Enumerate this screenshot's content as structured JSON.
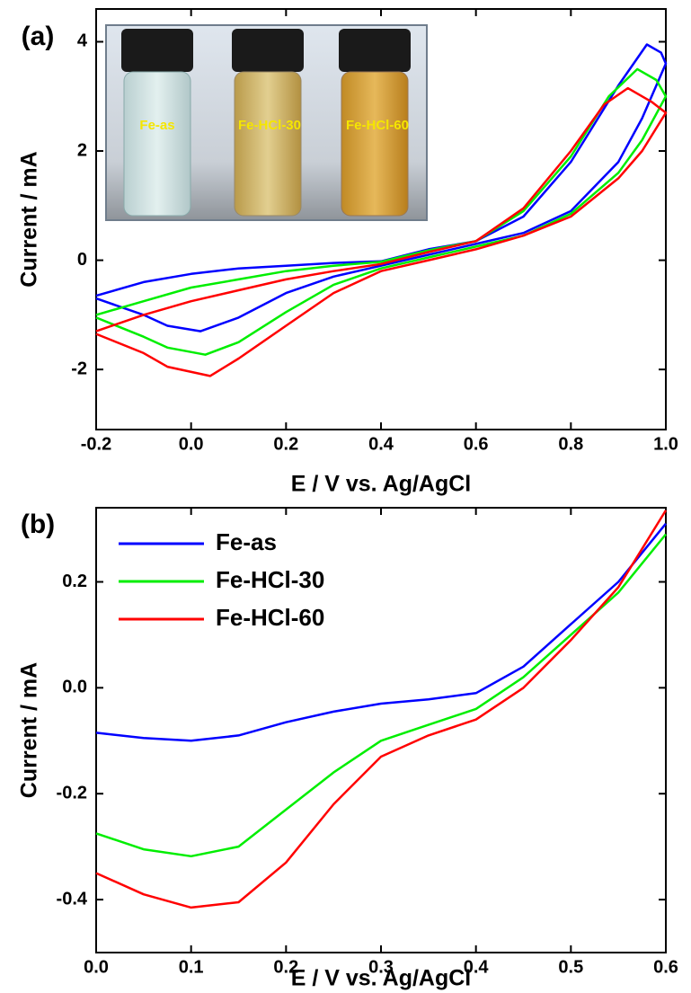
{
  "chart_data": [
    {
      "type": "line",
      "panel_label": "(a)",
      "xlabel": "E / V vs. Ag/AgCl",
      "ylabel": "Current / mA",
      "xlim": [
        -0.2,
        1.0
      ],
      "ylim": [
        -3.1,
        4.6
      ],
      "xticks": [
        -0.2,
        {
          "value": 0,
          "label": "0.0"
        },
        0.2,
        0.4,
        0.6,
        0.8,
        {
          "value": 1.0,
          "label": "1.0"
        }
      ],
      "yticks": [
        -2,
        0,
        2,
        4
      ],
      "annotations": [
        "Fe-as",
        "Fe-HCl-30",
        "Fe-HCl-60"
      ],
      "series": [
        {
          "color": "#0000ff",
          "x": [
            -0.2,
            -0.1,
            0,
            0.1,
            0.2,
            0.3,
            0.4,
            0.5,
            0.6,
            0.7,
            0.8,
            0.9,
            0.96,
            0.99,
            1.0,
            0.95,
            0.9,
            0.8,
            0.7,
            0.6,
            0.5,
            0.4,
            0.3,
            0.2,
            0.1,
            0.02,
            -0.05,
            -0.1,
            -0.2
          ],
          "values": [
            -0.65,
            -0.4,
            -0.25,
            -0.15,
            -0.1,
            -0.05,
            -0.02,
            0.2,
            0.35,
            0.8,
            1.8,
            3.2,
            3.95,
            3.8,
            3.6,
            2.6,
            1.8,
            0.9,
            0.5,
            0.3,
            0.1,
            -0.1,
            -0.3,
            -0.6,
            -1.05,
            -1.3,
            -1.2,
            -1.0,
            -0.7
          ]
        },
        {
          "color": "#00ee00",
          "x": [
            -0.2,
            -0.1,
            0,
            0.1,
            0.2,
            0.3,
            0.4,
            0.5,
            0.6,
            0.7,
            0.8,
            0.88,
            0.94,
            0.98,
            1.0,
            0.95,
            0.9,
            0.8,
            0.7,
            0.6,
            0.5,
            0.4,
            0.3,
            0.2,
            0.1,
            0.03,
            -0.05,
            -0.1,
            -0.2
          ],
          "values": [
            -1.0,
            -0.75,
            -0.5,
            -0.35,
            -0.2,
            -0.1,
            -0.03,
            0.18,
            0.35,
            0.9,
            1.9,
            3.0,
            3.5,
            3.3,
            3.0,
            2.2,
            1.6,
            0.85,
            0.45,
            0.25,
            0.05,
            -0.15,
            -0.45,
            -0.95,
            -1.5,
            -1.73,
            -1.6,
            -1.4,
            -1.05
          ]
        },
        {
          "color": "#ff0000",
          "x": [
            -0.2,
            -0.1,
            0,
            0.1,
            0.2,
            0.3,
            0.4,
            0.5,
            0.6,
            0.7,
            0.8,
            0.87,
            0.92,
            0.97,
            1.0,
            0.95,
            0.9,
            0.8,
            0.7,
            0.6,
            0.5,
            0.4,
            0.3,
            0.2,
            0.1,
            0.04,
            -0.05,
            -0.1,
            -0.2
          ],
          "values": [
            -1.3,
            -1.0,
            -0.75,
            -0.55,
            -0.35,
            -0.2,
            -0.07,
            0.15,
            0.35,
            0.95,
            2.0,
            2.85,
            3.15,
            2.9,
            2.7,
            2.0,
            1.5,
            0.8,
            0.45,
            0.2,
            0.0,
            -0.2,
            -0.6,
            -1.2,
            -1.8,
            -2.12,
            -1.95,
            -1.7,
            -1.35
          ]
        }
      ]
    },
    {
      "type": "line",
      "panel_label": "(b)",
      "xlabel": "E / V vs. Ag/AgCl",
      "ylabel": "Current / mA",
      "xlim": [
        0,
        0.6
      ],
      "ylim": [
        -0.5,
        0.34
      ],
      "xticks": [
        {
          "value": 0,
          "label": "0.0"
        },
        0.1,
        0.2,
        0.3,
        0.4,
        0.5,
        0.6
      ],
      "yticks": [
        -0.4,
        -0.2,
        {
          "value": 0,
          "label": "0.0"
        },
        0.2
      ],
      "legend": "upper left",
      "series": [
        {
          "name": "Fe-as",
          "color": "#0000ff",
          "x": [
            0,
            0.05,
            0.1,
            0.15,
            0.2,
            0.25,
            0.3,
            0.35,
            0.4,
            0.45,
            0.5,
            0.55,
            0.6
          ],
          "values": [
            -0.085,
            -0.095,
            -0.1,
            -0.09,
            -0.065,
            -0.045,
            -0.03,
            -0.022,
            -0.01,
            0.04,
            0.12,
            0.2,
            0.31
          ]
        },
        {
          "name": "Fe-HCl-30",
          "color": "#00ee00",
          "x": [
            0,
            0.05,
            0.1,
            0.15,
            0.2,
            0.25,
            0.3,
            0.35,
            0.4,
            0.45,
            0.5,
            0.55,
            0.6
          ],
          "values": [
            -0.275,
            -0.305,
            -0.318,
            -0.3,
            -0.23,
            -0.16,
            -0.1,
            -0.07,
            -0.04,
            0.02,
            0.1,
            0.18,
            0.29
          ]
        },
        {
          "name": "Fe-HCl-60",
          "color": "#ff0000",
          "x": [
            0,
            0.05,
            0.1,
            0.15,
            0.2,
            0.25,
            0.3,
            0.35,
            0.4,
            0.45,
            0.5,
            0.55,
            0.6
          ],
          "values": [
            -0.35,
            -0.39,
            -0.415,
            -0.405,
            -0.33,
            -0.22,
            -0.13,
            -0.09,
            -0.06,
            0.0,
            0.09,
            0.19,
            0.335
          ]
        }
      ]
    }
  ]
}
